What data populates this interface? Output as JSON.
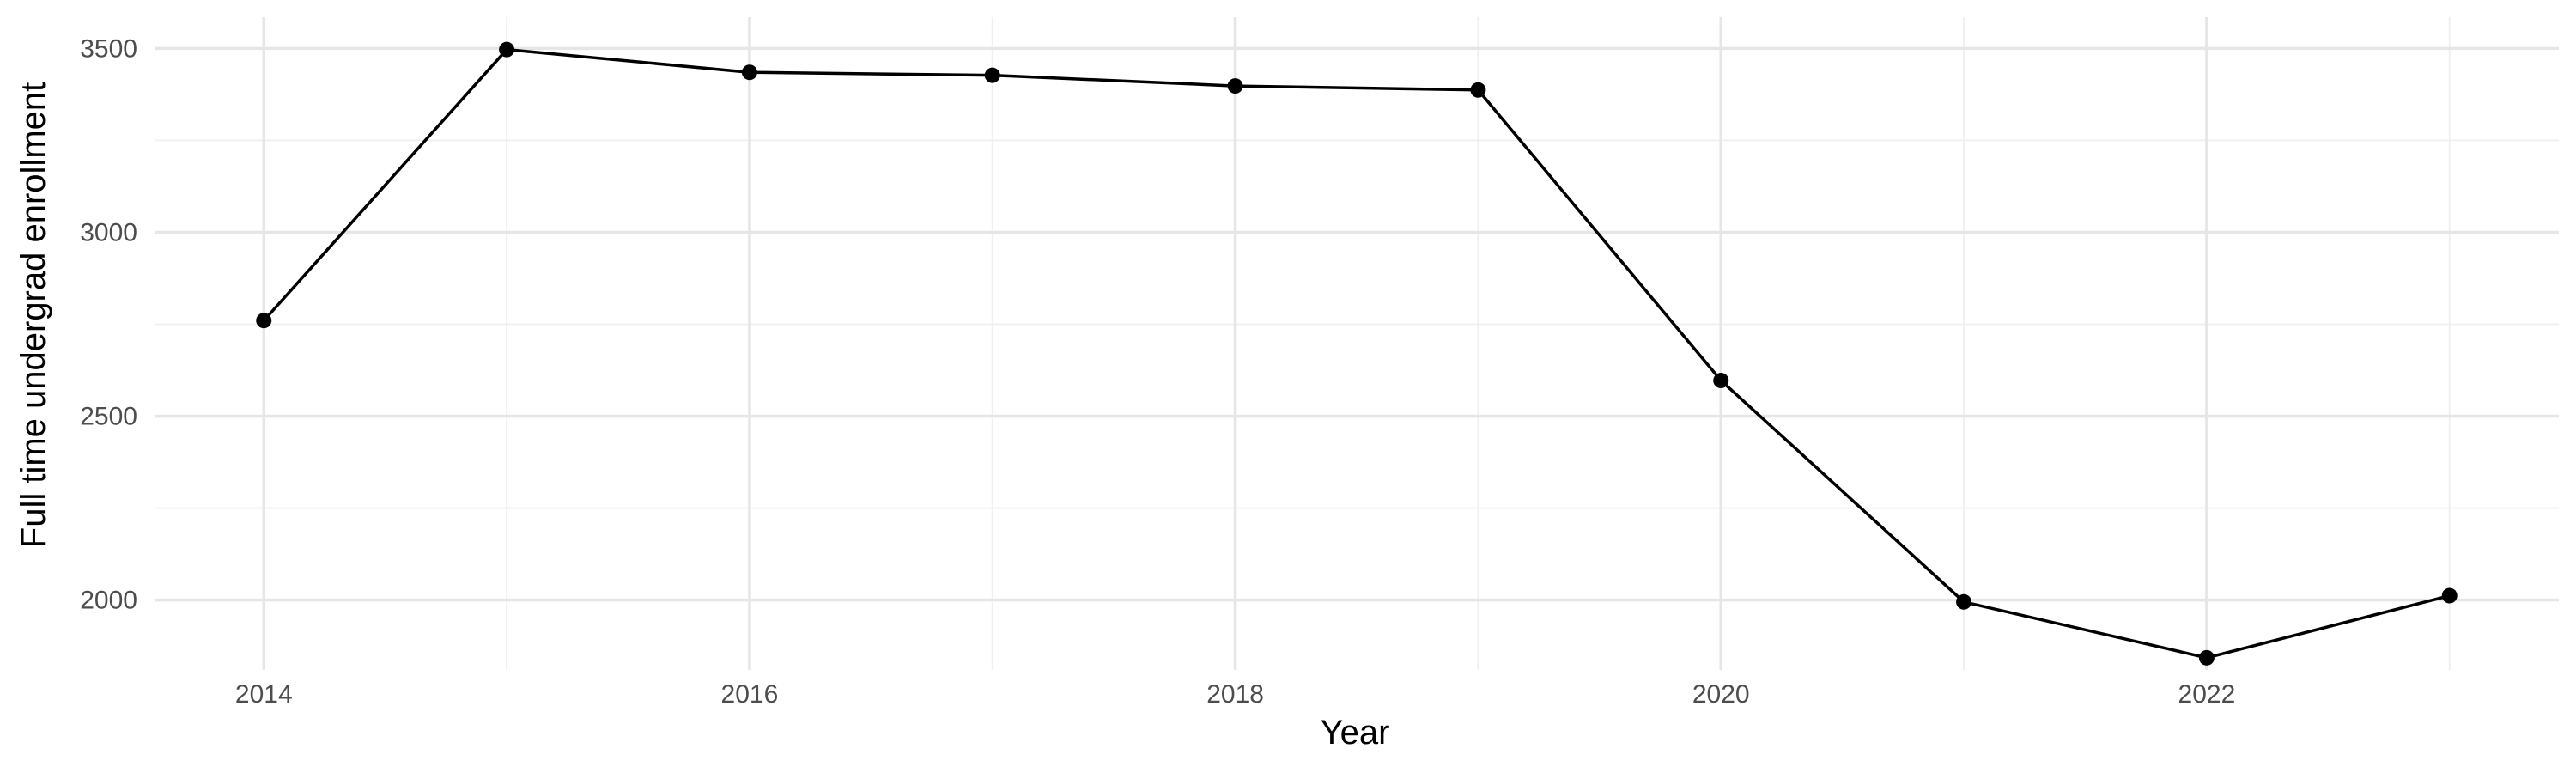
{
  "chart_data": {
    "type": "line",
    "title": "",
    "xlabel": "Year",
    "ylabel": "Full time undergrad enrollment",
    "x": [
      2014,
      2015,
      2016,
      2017,
      2018,
      2019,
      2020,
      2021,
      2022,
      2023
    ],
    "series": [
      {
        "name": "",
        "values": [
          2760,
          3497,
          3435,
          3427,
          3398,
          3387,
          2597,
          1995,
          1843,
          2012
        ]
      }
    ],
    "x_ticks": [
      2014,
      2016,
      2018,
      2020,
      2022
    ],
    "y_ticks": [
      2000,
      2500,
      3000,
      3500
    ],
    "xlim": [
      2013.55,
      2023.45
    ],
    "ylim": [
      1810,
      3585
    ],
    "grid": true,
    "legend": "none",
    "colors": {
      "line": "#000000",
      "grid": "#e6e6e6",
      "text": "#4d4d4d",
      "background": "#ffffff"
    }
  }
}
